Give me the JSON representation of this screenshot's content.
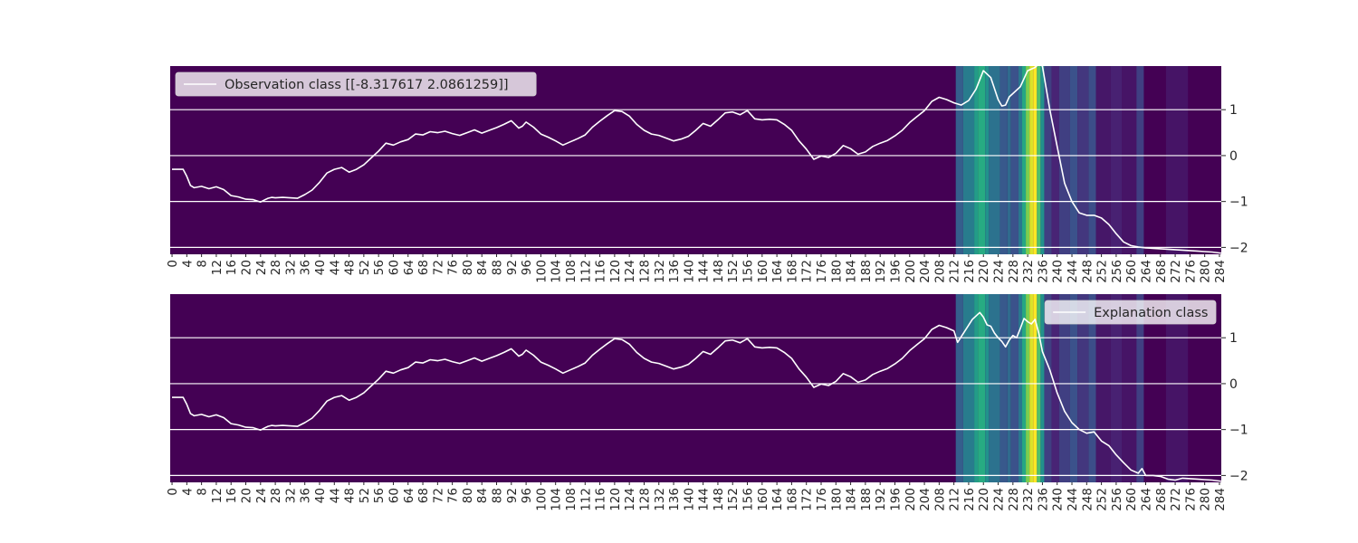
{
  "chart_data": [
    {
      "type": "heatmap",
      "legend": {
        "label": "Observation class [[-8.317617   2.0861259]]",
        "placement": "upper-left"
      },
      "x_ticks": [
        "0",
        "4",
        "8",
        "12",
        "16",
        "20",
        "24",
        "28",
        "32",
        "36",
        "40",
        "44",
        "48",
        "52",
        "56",
        "60",
        "64",
        "68",
        "72",
        "76",
        "80",
        "84",
        "88",
        "92",
        "96",
        "100",
        "104",
        "108",
        "112",
        "116",
        "120",
        "124",
        "128",
        "132",
        "136",
        "140",
        "144",
        "148",
        "152",
        "156",
        "160",
        "164",
        "168",
        "172",
        "176",
        "180",
        "184",
        "188",
        "192",
        "196",
        "200",
        "204",
        "208",
        "212",
        "216",
        "220",
        "224",
        "228",
        "232",
        "236",
        "240",
        "244",
        "248",
        "252",
        "256",
        "260",
        "264",
        "268",
        "272",
        "276",
        "280",
        "284"
      ],
      "y_ticks": [
        1,
        0,
        -1,
        -2
      ],
      "y_tick_labels": [
        "1",
        "0",
        "−1",
        "−2"
      ],
      "ylim": [
        -2.15,
        1.95
      ],
      "xlim": [
        0,
        285
      ],
      "grid": true,
      "heat_bands": [
        {
          "x0": 213,
          "x1": 215,
          "v": 0.3
        },
        {
          "x0": 215,
          "x1": 218,
          "v": 0.42
        },
        {
          "x0": 218,
          "x1": 219,
          "v": 0.55
        },
        {
          "x0": 219,
          "x1": 221,
          "v": 0.62
        },
        {
          "x0": 221,
          "x1": 222,
          "v": 0.5
        },
        {
          "x0": 222,
          "x1": 225,
          "v": 0.38
        },
        {
          "x0": 225,
          "x1": 227,
          "v": 0.28
        },
        {
          "x0": 227,
          "x1": 228,
          "v": 0.35
        },
        {
          "x0": 228,
          "x1": 230,
          "v": 0.25
        },
        {
          "x0": 230,
          "x1": 231,
          "v": 0.4
        },
        {
          "x0": 231,
          "x1": 232,
          "v": 0.6
        },
        {
          "x0": 232,
          "x1": 233,
          "v": 0.8
        },
        {
          "x0": 233,
          "x1": 234,
          "v": 0.95
        },
        {
          "x0": 234,
          "x1": 235,
          "v": 1.0
        },
        {
          "x0": 235,
          "x1": 236,
          "v": 0.72
        },
        {
          "x0": 236,
          "x1": 237,
          "v": 0.5
        },
        {
          "x0": 237,
          "x1": 239,
          "v": 0.2
        },
        {
          "x0": 239,
          "x1": 241,
          "v": 0.13
        },
        {
          "x0": 241,
          "x1": 244,
          "v": 0.2
        },
        {
          "x0": 244,
          "x1": 246,
          "v": 0.25
        },
        {
          "x0": 246,
          "x1": 249,
          "v": 0.18
        },
        {
          "x0": 249,
          "x1": 251,
          "v": 0.24
        },
        {
          "x0": 251,
          "x1": 255,
          "v": 0.08
        },
        {
          "x0": 255,
          "x1": 258,
          "v": 0.12
        },
        {
          "x0": 258,
          "x1": 262,
          "v": 0.07
        },
        {
          "x0": 262,
          "x1": 264,
          "v": 0.2
        },
        {
          "x0": 264,
          "x1": 270,
          "v": 0.0
        },
        {
          "x0": 270,
          "x1": 276,
          "v": 0.07
        },
        {
          "x0": 276,
          "x1": 285,
          "v": 0.0
        }
      ],
      "series": [
        {
          "x": [
            0,
            3,
            4,
            5,
            6,
            8,
            10,
            12,
            14,
            16,
            18,
            20,
            22,
            24,
            25,
            26,
            27,
            28,
            30,
            32,
            34,
            36,
            38,
            40,
            41,
            42,
            44,
            46,
            48,
            50,
            52,
            54,
            56,
            58,
            60,
            62,
            64,
            66,
            68,
            70,
            72,
            74,
            76,
            78,
            80,
            82,
            84,
            86,
            88,
            90,
            92,
            93,
            94,
            95,
            96,
            98,
            100,
            102,
            104,
            106,
            108,
            110,
            112,
            114,
            116,
            118,
            120,
            122,
            124,
            126,
            128,
            130,
            132,
            134,
            136,
            138,
            140,
            142,
            144,
            146,
            148,
            150,
            152,
            154,
            156,
            158,
            160,
            162,
            164,
            166,
            168,
            170,
            172,
            174,
            176,
            178,
            180,
            182,
            184,
            186,
            188,
            190,
            192,
            194,
            196,
            198,
            200,
            202,
            204,
            206,
            208,
            210,
            212,
            214,
            216,
            218,
            220,
            222,
            224,
            225,
            226,
            227,
            228,
            230,
            232,
            234,
            235,
            236,
            238,
            240,
            242,
            244,
            246,
            248,
            250,
            252,
            254,
            256,
            258,
            260,
            262,
            264,
            266,
            268,
            270,
            272,
            274,
            276,
            278,
            280,
            282,
            285
          ],
          "y": [
            -0.3,
            -0.3,
            -0.45,
            -0.65,
            -0.7,
            -0.67,
            -0.72,
            -0.68,
            -0.74,
            -0.87,
            -0.9,
            -0.95,
            -0.96,
            -1.01,
            -0.97,
            -0.93,
            -0.91,
            -0.92,
            -0.91,
            -0.92,
            -0.93,
            -0.85,
            -0.75,
            -0.58,
            -0.48,
            -0.38,
            -0.3,
            -0.26,
            -0.36,
            -0.3,
            -0.2,
            -0.05,
            0.1,
            0.27,
            0.23,
            0.3,
            0.35,
            0.47,
            0.45,
            0.52,
            0.5,
            0.53,
            0.48,
            0.44,
            0.5,
            0.56,
            0.49,
            0.55,
            0.61,
            0.68,
            0.76,
            0.68,
            0.6,
            0.64,
            0.73,
            0.62,
            0.47,
            0.4,
            0.32,
            0.23,
            0.3,
            0.37,
            0.45,
            0.62,
            0.75,
            0.87,
            0.98,
            0.96,
            0.86,
            0.68,
            0.55,
            0.47,
            0.44,
            0.38,
            0.32,
            0.36,
            0.42,
            0.55,
            0.7,
            0.64,
            0.78,
            0.93,
            0.95,
            0.89,
            0.98,
            0.8,
            0.78,
            0.79,
            0.78,
            0.68,
            0.55,
            0.32,
            0.14,
            -0.08,
            -0.01,
            -0.04,
            0.05,
            0.22,
            0.15,
            0.03,
            0.08,
            0.2,
            0.27,
            0.33,
            0.43,
            0.55,
            0.72,
            0.85,
            0.98,
            1.18,
            1.27,
            1.22,
            1.15,
            1.1,
            1.2,
            1.45,
            1.85,
            1.7,
            1.22,
            1.08,
            1.1,
            1.28,
            1.35,
            1.5,
            1.85,
            1.92,
            2.0,
            1.95,
            1.0,
            0.2,
            -0.6,
            -1.0,
            -1.25,
            -1.3,
            -1.3,
            -1.36,
            -1.5,
            -1.7,
            -1.88,
            -1.96,
            -1.99,
            -2.01,
            -2.02,
            -2.03,
            -2.04,
            -2.05,
            -2.06,
            -2.07,
            -2.08,
            -2.09,
            -2.1,
            -2.13
          ]
        }
      ]
    },
    {
      "type": "heatmap",
      "legend": {
        "label": "Explanation class",
        "placement": "upper-right"
      },
      "x_ticks": [
        "0",
        "4",
        "8",
        "12",
        "16",
        "20",
        "24",
        "28",
        "32",
        "36",
        "40",
        "44",
        "48",
        "52",
        "56",
        "60",
        "64",
        "68",
        "72",
        "76",
        "80",
        "84",
        "88",
        "92",
        "96",
        "100",
        "104",
        "108",
        "112",
        "116",
        "120",
        "124",
        "128",
        "132",
        "136",
        "140",
        "144",
        "148",
        "152",
        "156",
        "160",
        "164",
        "168",
        "172",
        "176",
        "180",
        "184",
        "188",
        "192",
        "196",
        "200",
        "204",
        "208",
        "212",
        "216",
        "220",
        "224",
        "228",
        "232",
        "236",
        "240",
        "244",
        "248",
        "252",
        "256",
        "260",
        "264",
        "268",
        "272",
        "276",
        "280",
        "284"
      ],
      "y_ticks": [
        1,
        0,
        -1,
        -2
      ],
      "y_tick_labels": [
        "1",
        "0",
        "−1",
        "−2"
      ],
      "ylim": [
        -2.15,
        1.95
      ],
      "xlim": [
        0,
        285
      ],
      "grid": true,
      "heat_bands": [
        {
          "x0": 213,
          "x1": 215,
          "v": 0.3
        },
        {
          "x0": 215,
          "x1": 218,
          "v": 0.42
        },
        {
          "x0": 218,
          "x1": 219,
          "v": 0.55
        },
        {
          "x0": 219,
          "x1": 221,
          "v": 0.62
        },
        {
          "x0": 221,
          "x1": 222,
          "v": 0.5
        },
        {
          "x0": 222,
          "x1": 225,
          "v": 0.38
        },
        {
          "x0": 225,
          "x1": 227,
          "v": 0.28
        },
        {
          "x0": 227,
          "x1": 228,
          "v": 0.35
        },
        {
          "x0": 228,
          "x1": 230,
          "v": 0.25
        },
        {
          "x0": 230,
          "x1": 231,
          "v": 0.4
        },
        {
          "x0": 231,
          "x1": 232,
          "v": 0.6
        },
        {
          "x0": 232,
          "x1": 233,
          "v": 0.8
        },
        {
          "x0": 233,
          "x1": 234,
          "v": 0.95
        },
        {
          "x0": 234,
          "x1": 235,
          "v": 1.0
        },
        {
          "x0": 235,
          "x1": 236,
          "v": 0.72
        },
        {
          "x0": 236,
          "x1": 237,
          "v": 0.5
        },
        {
          "x0": 237,
          "x1": 239,
          "v": 0.2
        },
        {
          "x0": 239,
          "x1": 241,
          "v": 0.13
        },
        {
          "x0": 241,
          "x1": 244,
          "v": 0.2
        },
        {
          "x0": 244,
          "x1": 246,
          "v": 0.25
        },
        {
          "x0": 246,
          "x1": 249,
          "v": 0.18
        },
        {
          "x0": 249,
          "x1": 251,
          "v": 0.24
        },
        {
          "x0": 251,
          "x1": 255,
          "v": 0.08
        },
        {
          "x0": 255,
          "x1": 258,
          "v": 0.12
        },
        {
          "x0": 258,
          "x1": 262,
          "v": 0.07
        },
        {
          "x0": 262,
          "x1": 264,
          "v": 0.2
        },
        {
          "x0": 264,
          "x1": 270,
          "v": 0.0
        },
        {
          "x0": 270,
          "x1": 276,
          "v": 0.07
        },
        {
          "x0": 276,
          "x1": 285,
          "v": 0.0
        }
      ],
      "series": [
        {
          "x": [
            0,
            3,
            4,
            5,
            6,
            8,
            10,
            12,
            14,
            16,
            18,
            20,
            22,
            24,
            25,
            26,
            27,
            28,
            30,
            32,
            34,
            36,
            38,
            40,
            41,
            42,
            44,
            46,
            48,
            50,
            52,
            54,
            56,
            58,
            60,
            62,
            64,
            66,
            68,
            70,
            72,
            74,
            76,
            78,
            80,
            82,
            84,
            86,
            88,
            90,
            92,
            93,
            94,
            95,
            96,
            98,
            100,
            102,
            104,
            106,
            108,
            110,
            112,
            114,
            116,
            118,
            120,
            122,
            124,
            126,
            128,
            130,
            132,
            134,
            136,
            138,
            140,
            142,
            144,
            146,
            148,
            150,
            152,
            154,
            156,
            158,
            160,
            162,
            164,
            166,
            168,
            170,
            172,
            174,
            176,
            178,
            180,
            182,
            184,
            186,
            188,
            190,
            192,
            194,
            196,
            198,
            200,
            202,
            204,
            206,
            208,
            210,
            212,
            213,
            215,
            217,
            219,
            220,
            221,
            222,
            223,
            224,
            225,
            226,
            227,
            228,
            229,
            230,
            231,
            232,
            233,
            234,
            235,
            236,
            237,
            238,
            240,
            242,
            244,
            246,
            248,
            250,
            252,
            254,
            256,
            258,
            260,
            262,
            263,
            264,
            266,
            268,
            270,
            272,
            274,
            276,
            278,
            280,
            282,
            285
          ],
          "y": [
            -0.3,
            -0.3,
            -0.45,
            -0.65,
            -0.7,
            -0.67,
            -0.72,
            -0.68,
            -0.74,
            -0.87,
            -0.9,
            -0.95,
            -0.96,
            -1.01,
            -0.97,
            -0.93,
            -0.91,
            -0.92,
            -0.91,
            -0.92,
            -0.93,
            -0.85,
            -0.75,
            -0.58,
            -0.48,
            -0.38,
            -0.3,
            -0.26,
            -0.36,
            -0.3,
            -0.2,
            -0.05,
            0.1,
            0.27,
            0.23,
            0.3,
            0.35,
            0.47,
            0.45,
            0.52,
            0.5,
            0.53,
            0.48,
            0.44,
            0.5,
            0.56,
            0.49,
            0.55,
            0.61,
            0.68,
            0.76,
            0.68,
            0.6,
            0.64,
            0.73,
            0.62,
            0.47,
            0.4,
            0.32,
            0.23,
            0.3,
            0.37,
            0.45,
            0.62,
            0.75,
            0.87,
            0.98,
            0.96,
            0.86,
            0.68,
            0.55,
            0.47,
            0.44,
            0.38,
            0.32,
            0.36,
            0.42,
            0.55,
            0.7,
            0.64,
            0.78,
            0.93,
            0.95,
            0.89,
            0.98,
            0.8,
            0.78,
            0.79,
            0.78,
            0.68,
            0.55,
            0.32,
            0.14,
            -0.08,
            -0.01,
            -0.04,
            0.05,
            0.22,
            0.15,
            0.03,
            0.08,
            0.2,
            0.27,
            0.33,
            0.43,
            0.55,
            0.72,
            0.85,
            0.98,
            1.18,
            1.27,
            1.22,
            1.15,
            0.9,
            1.15,
            1.4,
            1.55,
            1.45,
            1.28,
            1.25,
            1.1,
            1.0,
            0.92,
            0.8,
            0.95,
            1.05,
            1.0,
            1.2,
            1.42,
            1.35,
            1.3,
            1.4,
            1.1,
            0.7,
            0.5,
            0.3,
            -0.2,
            -0.6,
            -0.85,
            -1.0,
            -1.08,
            -1.05,
            -1.25,
            -1.35,
            -1.55,
            -1.72,
            -1.88,
            -1.95,
            -1.85,
            -2.0,
            -2.0,
            -2.02,
            -2.08,
            -2.1,
            -2.06,
            -2.07,
            -2.08,
            -2.09,
            -2.1,
            -2.13
          ]
        }
      ]
    }
  ]
}
